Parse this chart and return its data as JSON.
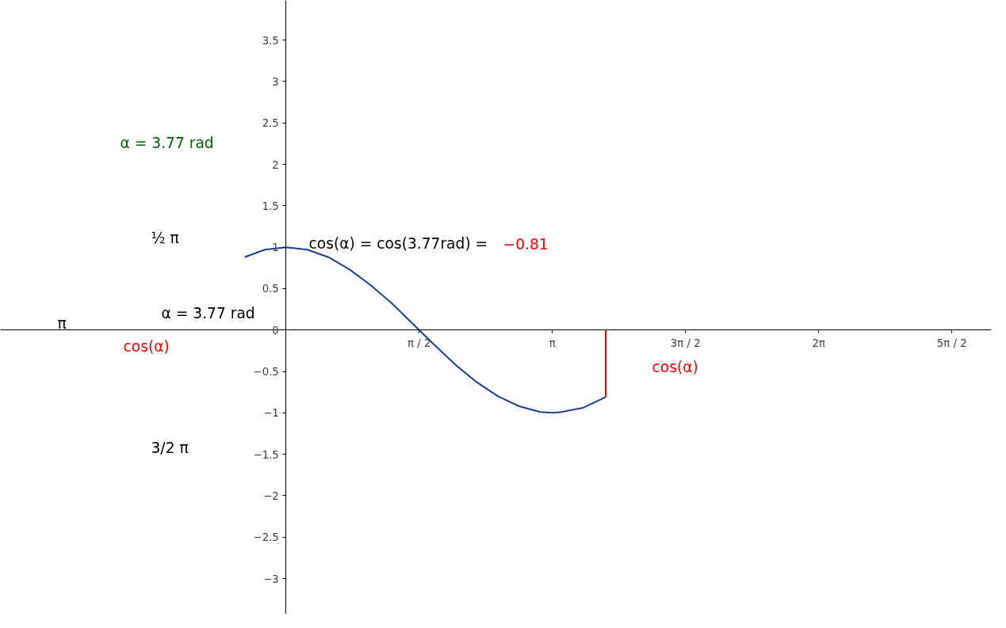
{
  "chart_data": {
    "type": "line",
    "xlim": [
      -3.37,
      8.32
    ],
    "ylim": [
      -3.43,
      3.98
    ],
    "xticks": [
      {
        "value": 1.5708,
        "label": "π / 2"
      },
      {
        "value": 3.1416,
        "label": "π"
      },
      {
        "value": 4.7124,
        "label": "3π / 2"
      },
      {
        "value": 6.2832,
        "label": "2π"
      },
      {
        "value": 7.854,
        "label": "5π / 2"
      }
    ],
    "yticks": [
      {
        "value": -3,
        "label": "−3"
      },
      {
        "value": -2.5,
        "label": "−2.5"
      },
      {
        "value": -2,
        "label": "−2"
      },
      {
        "value": -1.5,
        "label": "−1.5"
      },
      {
        "value": -1,
        "label": "−1"
      },
      {
        "value": -0.5,
        "label": "−0.5"
      },
      0,
      0.5,
      1,
      1.5,
      2,
      2.5,
      3,
      3.5
    ],
    "grid": false,
    "marker": "none",
    "line_style": "solid",
    "series": [
      {
        "color": "#1c3f95",
        "x": [
          -0.49,
          -0.25,
          0,
          0.25,
          0.5,
          0.75,
          1,
          1.25,
          1.5,
          1.75,
          2,
          2.25,
          2.5,
          2.75,
          3,
          3.14,
          3.25,
          3.5,
          3.77
        ],
        "values": [
          0.88,
          0.97,
          1,
          0.97,
          0.88,
          0.73,
          0.54,
          0.32,
          0.07,
          -0.18,
          -0.42,
          -0.63,
          -0.8,
          -0.92,
          -0.99,
          -1,
          -0.99,
          -0.94,
          -0.81
        ]
      },
      {
        "color": "#ff0000",
        "x": [
          3.77,
          3.77
        ],
        "values": [
          0,
          -0.81
        ]
      }
    ],
    "annotations": [
      "cos(α) = cos(3.77rad) = ",
      "−0.81",
      "cos(α)",
      "α = 3.77 rad",
      "α = 3.77 rad",
      "cos(α)",
      "½ π",
      "3/2 π",
      "π"
    ]
  }
}
